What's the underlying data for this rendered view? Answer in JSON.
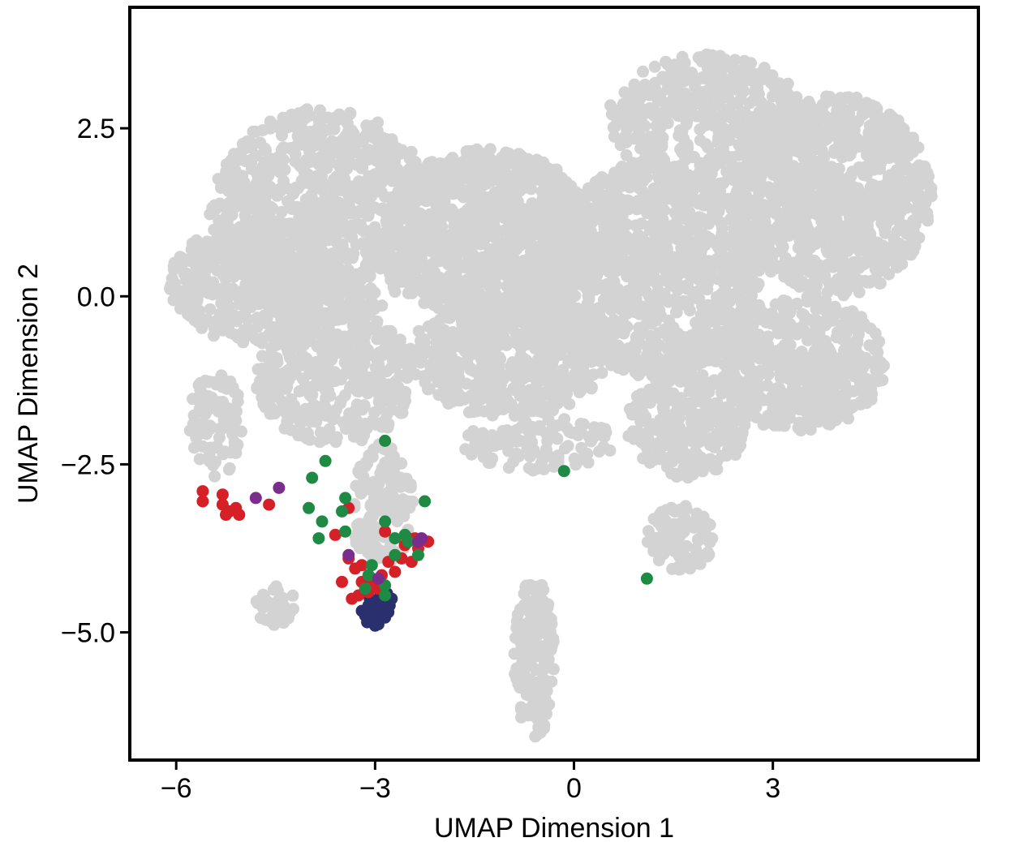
{
  "chart_data": {
    "type": "scatter",
    "title": "",
    "xlabel": "UMAP Dimension 1",
    "ylabel": "UMAP Dimension 2",
    "xlim": [
      -6.7,
      6.1
    ],
    "ylim": [
      -6.9,
      4.3
    ],
    "x_ticks": [
      -6,
      -3,
      0,
      3
    ],
    "x_tick_labels": [
      "−6",
      "−3",
      "0",
      "3"
    ],
    "y_ticks": [
      2.5,
      0.0,
      -2.5,
      -5.0
    ],
    "y_tick_labels": [
      "2.5",
      "0.0",
      "−2.5",
      "−5.0"
    ],
    "grid": false,
    "legend": "none",
    "background_points": {
      "color": "#d3d3d3",
      "regions": [
        {
          "cx": -3.8,
          "cy": 1.2,
          "rx": 1.7,
          "ry": 1.6,
          "n": 950
        },
        {
          "cx": -4.8,
          "cy": 0.2,
          "rx": 1.3,
          "ry": 0.9,
          "n": 420
        },
        {
          "cx": -3.6,
          "cy": -1.2,
          "rx": 1.2,
          "ry": 1.0,
          "n": 420
        },
        {
          "cx": -5.4,
          "cy": -1.9,
          "rx": 0.4,
          "ry": 0.8,
          "n": 90
        },
        {
          "cx": -2.9,
          "cy": -3.1,
          "rx": 0.5,
          "ry": 0.9,
          "n": 140
        },
        {
          "cx": -1.3,
          "cy": 0.9,
          "rx": 1.6,
          "ry": 1.3,
          "n": 1050
        },
        {
          "cx": -1.0,
          "cy": -0.9,
          "rx": 1.5,
          "ry": 0.9,
          "n": 550
        },
        {
          "cx": 1.2,
          "cy": 0.4,
          "rx": 1.6,
          "ry": 1.6,
          "n": 1050
        },
        {
          "cx": 2.0,
          "cy": 2.6,
          "rx": 1.5,
          "ry": 1.0,
          "n": 450
        },
        {
          "cx": 3.9,
          "cy": 1.5,
          "rx": 1.5,
          "ry": 1.5,
          "n": 1000
        },
        {
          "cx": 3.4,
          "cy": -1.0,
          "rx": 1.3,
          "ry": 1.0,
          "n": 500
        },
        {
          "cx": 1.7,
          "cy": -1.9,
          "rx": 0.9,
          "ry": 0.8,
          "n": 280
        },
        {
          "cx": 1.6,
          "cy": -3.6,
          "rx": 0.5,
          "ry": 0.5,
          "n": 90
        },
        {
          "cx": -0.6,
          "cy": -5.4,
          "rx": 0.3,
          "ry": 1.2,
          "n": 180
        },
        {
          "cx": -4.5,
          "cy": -4.6,
          "rx": 0.3,
          "ry": 0.3,
          "n": 35
        },
        {
          "cx": -0.5,
          "cy": -2.2,
          "rx": 1.2,
          "ry": 0.4,
          "n": 110
        }
      ]
    },
    "series": [
      {
        "color": "#2a2f6e",
        "points": [
          [
            -3.15,
            -4.75
          ],
          [
            -3.05,
            -4.82
          ],
          [
            -2.95,
            -4.7
          ],
          [
            -2.85,
            -4.78
          ],
          [
            -3.1,
            -4.6
          ],
          [
            -3.0,
            -4.55
          ],
          [
            -2.9,
            -4.62
          ],
          [
            -2.8,
            -4.7
          ],
          [
            -3.2,
            -4.68
          ],
          [
            -2.95,
            -4.88
          ],
          [
            -3.05,
            -4.65
          ],
          [
            -2.88,
            -4.52
          ],
          [
            -2.78,
            -4.6
          ],
          [
            -3.12,
            -4.85
          ],
          [
            -2.98,
            -4.76
          ],
          [
            -2.92,
            -4.45
          ],
          [
            -2.82,
            -4.42
          ],
          [
            -3.08,
            -4.5
          ],
          [
            -2.75,
            -4.5
          ],
          [
            -3.0,
            -4.9
          ]
        ]
      },
      {
        "color": "#d62027",
        "points": [
          [
            -5.6,
            -2.9
          ],
          [
            -5.6,
            -3.05
          ],
          [
            -5.3,
            -2.95
          ],
          [
            -5.3,
            -3.1
          ],
          [
            -5.2,
            -3.2
          ],
          [
            -5.1,
            -3.15
          ],
          [
            -5.05,
            -3.25
          ],
          [
            -5.25,
            -3.25
          ],
          [
            -4.6,
            -3.1
          ],
          [
            -3.6,
            -3.55
          ],
          [
            -3.4,
            -3.15
          ],
          [
            -3.4,
            -3.9
          ],
          [
            -3.2,
            -4.0
          ],
          [
            -3.2,
            -4.25
          ],
          [
            -3.05,
            -4.2
          ],
          [
            -3.25,
            -4.45
          ],
          [
            -3.1,
            -4.4
          ],
          [
            -2.95,
            -4.35
          ],
          [
            -2.9,
            -4.15
          ],
          [
            -2.7,
            -4.1
          ],
          [
            -2.55,
            -3.7
          ],
          [
            -2.4,
            -3.6
          ],
          [
            -2.35,
            -3.75
          ],
          [
            -2.6,
            -3.9
          ],
          [
            -2.45,
            -3.95
          ],
          [
            -2.8,
            -3.95
          ],
          [
            -2.2,
            -3.65
          ],
          [
            -3.5,
            -4.25
          ],
          [
            -3.0,
            -4.3
          ],
          [
            -2.85,
            -3.5
          ],
          [
            -2.5,
            -3.6
          ],
          [
            -3.3,
            -4.05
          ],
          [
            -3.35,
            -4.5
          ]
        ]
      },
      {
        "color": "#1e8a44",
        "points": [
          [
            -2.85,
            -2.15
          ],
          [
            -3.75,
            -2.45
          ],
          [
            -3.95,
            -2.7
          ],
          [
            -4.0,
            -3.15
          ],
          [
            -3.8,
            -3.35
          ],
          [
            -3.85,
            -3.6
          ],
          [
            -3.5,
            -3.2
          ],
          [
            -3.45,
            -3.0
          ],
          [
            -3.45,
            -3.5
          ],
          [
            -2.25,
            -3.05
          ],
          [
            -2.85,
            -3.35
          ],
          [
            -2.7,
            -3.6
          ],
          [
            -2.55,
            -3.55
          ],
          [
            -3.05,
            -4.0
          ],
          [
            -2.7,
            -3.85
          ],
          [
            -2.35,
            -3.85
          ],
          [
            -2.5,
            -3.65
          ],
          [
            -2.85,
            -4.3
          ],
          [
            -2.85,
            -4.45
          ],
          [
            -3.15,
            -4.35
          ],
          [
            -0.15,
            -2.6
          ],
          [
            1.1,
            -4.2
          ],
          [
            -3.1,
            -4.15
          ]
        ]
      },
      {
        "color": "#7b2d8e",
        "points": [
          [
            -4.8,
            -3.0
          ],
          [
            -4.45,
            -2.85
          ],
          [
            -2.3,
            -3.6
          ],
          [
            -2.35,
            -3.65
          ],
          [
            -3.4,
            -3.85
          ],
          [
            -2.95,
            -4.2
          ]
        ]
      }
    ]
  }
}
